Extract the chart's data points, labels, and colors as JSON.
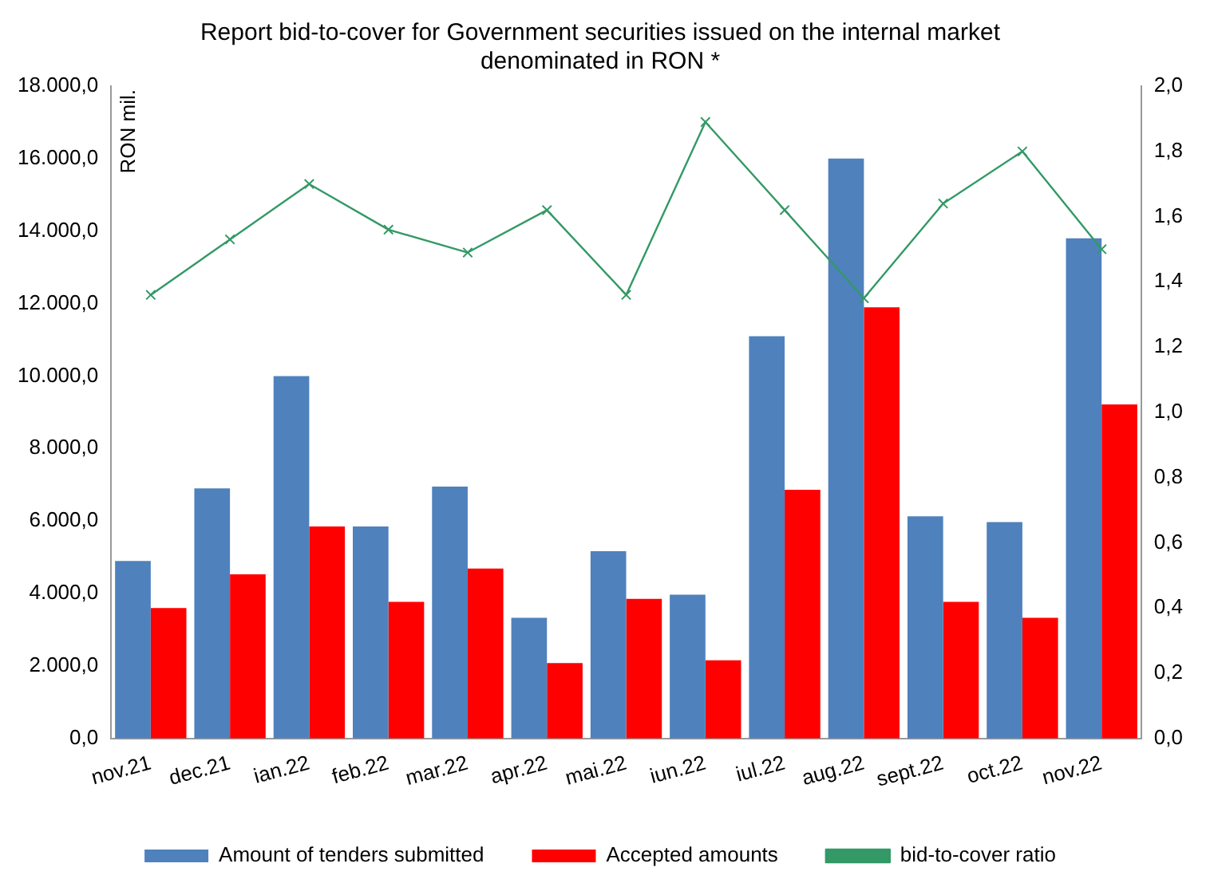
{
  "chart_data": {
    "type": "bar",
    "title": "Report bid-to-cover for Government securities issued on the internal market denominated in RON *",
    "ylabel": "RON mil.",
    "categories": [
      "nov.21",
      "dec.21",
      "ian.22",
      "feb.22",
      "mar.22",
      "apr.22",
      "mai.22",
      "iun.22",
      "iul.22",
      "aug.22",
      "sept.22",
      "oct.22",
      "nov.22"
    ],
    "series": [
      {
        "name": "Amount of tenders submitted",
        "color": "#4f81bd",
        "values": [
          4900,
          6900,
          10000,
          5850,
          6950,
          3330,
          5170,
          3970,
          11100,
          16000,
          6130,
          5970,
          13800
        ]
      },
      {
        "name": "Accepted amounts",
        "color": "#ff0000",
        "values": [
          3600,
          4530,
          5850,
          3770,
          4690,
          2080,
          3850,
          2160,
          6860,
          11900,
          3770,
          3330,
          9220
        ]
      },
      {
        "name": "bid-to-cover ratio",
        "type": "line",
        "axis": "y2",
        "color": "#339966",
        "marker": "cross",
        "values": [
          1.36,
          1.53,
          1.7,
          1.56,
          1.49,
          1.62,
          1.36,
          1.89,
          1.62,
          1.35,
          1.64,
          1.8,
          1.5
        ]
      }
    ],
    "ylim": [
      0,
      18000
    ],
    "yticks": [
      {
        "value": 0,
        "label": "0,0"
      },
      {
        "value": 2000,
        "label": "2.000,0"
      },
      {
        "value": 4000,
        "label": "4.000,0"
      },
      {
        "value": 6000,
        "label": "6.000,0"
      },
      {
        "value": 8000,
        "label": "8.000,0"
      },
      {
        "value": 10000,
        "label": "10.000,0"
      },
      {
        "value": 12000,
        "label": "12.000,0"
      },
      {
        "value": 14000,
        "label": "14.000,0"
      },
      {
        "value": 16000,
        "label": "16.000,0"
      },
      {
        "value": 18000,
        "label": "18.000,0"
      }
    ],
    "y2lim": [
      0,
      2
    ],
    "y2ticks": [
      {
        "value": 0,
        "label": "0,0"
      },
      {
        "value": 0.2,
        "label": "0,2"
      },
      {
        "value": 0.4,
        "label": "0,4"
      },
      {
        "value": 0.6,
        "label": "0,6"
      },
      {
        "value": 0.8,
        "label": "0,8"
      },
      {
        "value": 1,
        "label": "1,0"
      },
      {
        "value": 1.2,
        "label": "1,2"
      },
      {
        "value": 1.4,
        "label": "1,4"
      },
      {
        "value": 1.6,
        "label": "1,6"
      },
      {
        "value": 1.8,
        "label": "1,8"
      },
      {
        "value": 2,
        "label": "2,0"
      }
    ],
    "grid": false,
    "legend": "bottom"
  }
}
